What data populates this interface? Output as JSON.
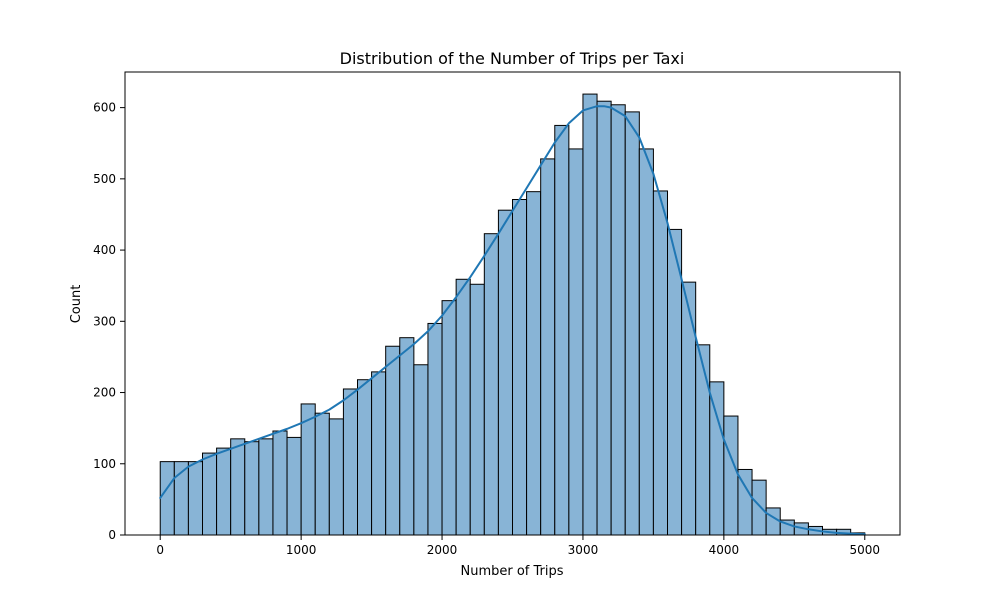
{
  "chart_data": {
    "type": "bar",
    "title": "Distribution of the Number of Trips per Taxi",
    "xlabel": "Number of Trips",
    "ylabel": "Count",
    "xlim": [
      -250,
      5250
    ],
    "ylim": [
      0,
      650
    ],
    "x_ticks": [
      0,
      1000,
      2000,
      3000,
      4000,
      5000
    ],
    "y_ticks": [
      0,
      100,
      200,
      300,
      400,
      500,
      600
    ],
    "grid": false,
    "legend": "none",
    "bin_width": 100,
    "bins_start": [
      0,
      100,
      200,
      300,
      400,
      500,
      600,
      700,
      800,
      900,
      1000,
      1100,
      1200,
      1300,
      1400,
      1500,
      1600,
      1700,
      1800,
      1900,
      2000,
      2100,
      2200,
      2300,
      2400,
      2500,
      2600,
      2700,
      2800,
      2900,
      3000,
      3100,
      3200,
      3300,
      3400,
      3500,
      3600,
      3700,
      3800,
      3900,
      4000,
      4100,
      4200,
      4300,
      4400,
      4500,
      4600,
      4700,
      4800,
      4900
    ],
    "values": [
      103,
      103,
      103,
      115,
      122,
      135,
      131,
      135,
      146,
      137,
      184,
      171,
      163,
      205,
      218,
      229,
      265,
      277,
      239,
      297,
      329,
      359,
      352,
      423,
      456,
      471,
      482,
      528,
      575,
      542,
      619,
      609,
      604,
      594,
      542,
      483,
      429,
      355,
      267,
      215,
      167,
      92,
      77,
      38,
      21,
      17,
      12,
      8,
      8,
      3
    ],
    "kde": {
      "x": [
        0,
        100,
        200,
        300,
        400,
        500,
        600,
        700,
        800,
        900,
        1000,
        1100,
        1200,
        1300,
        1400,
        1500,
        1600,
        1700,
        1800,
        1900,
        2000,
        2100,
        2200,
        2300,
        2400,
        2500,
        2600,
        2700,
        2800,
        2900,
        3000,
        3100,
        3150,
        3200,
        3300,
        3400,
        3500,
        3600,
        3700,
        3800,
        3900,
        4000,
        4100,
        4200,
        4300,
        4400,
        4500,
        4600,
        4700,
        4800,
        4900,
        5000
      ],
      "y": [
        52,
        80,
        96,
        106,
        114,
        121,
        128,
        135,
        142,
        149,
        157,
        166,
        176,
        189,
        204,
        220,
        236,
        252,
        268,
        286,
        308,
        334,
        362,
        392,
        423,
        455,
        487,
        519,
        551,
        578,
        596,
        602,
        602,
        600,
        588,
        558,
        507,
        438,
        359,
        278,
        200,
        134,
        85,
        52,
        31,
        19,
        12,
        8,
        5,
        3,
        2,
        1
      ]
    },
    "colors": {
      "bar_fill": "#88b4d6",
      "bar_edge": "#000000",
      "kde_line": "#1f77b4"
    }
  }
}
